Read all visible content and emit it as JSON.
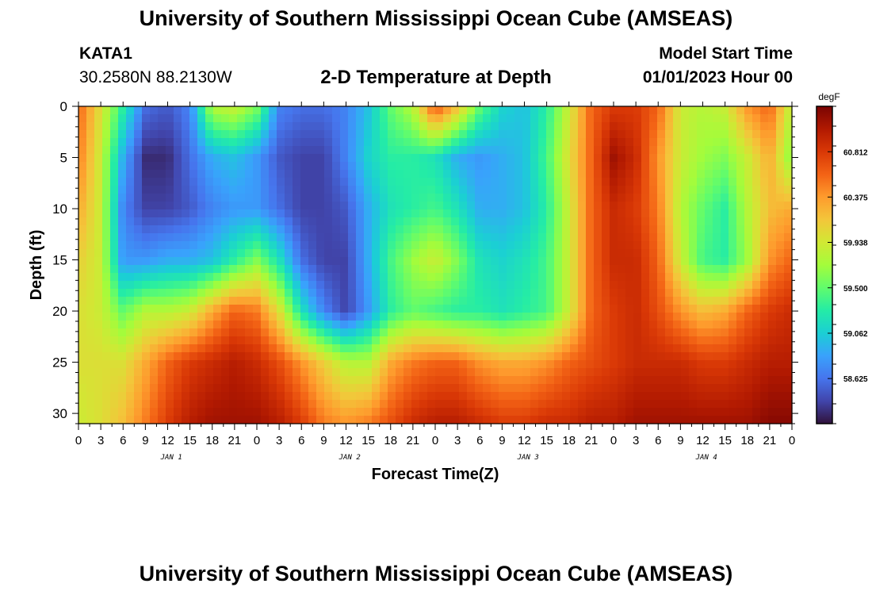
{
  "header": {
    "title": "University of Southern Mississippi Ocean Cube (AMSEAS)",
    "station": "KATA1",
    "coordinates": "30.2580N  88.2130W",
    "subtitle": "2-D Temperature at Depth",
    "model_start_label": "Model Start Time",
    "model_start_value": "01/01/2023 Hour 00"
  },
  "footer": {
    "title": "University of Southern Mississippi Ocean Cube (AMSEAS)"
  },
  "chart_data": {
    "type": "heatmap",
    "title": "2-D Temperature at Depth",
    "xlabel": "Forecast Time(Z)",
    "ylabel": "Depth (ft)",
    "x_range_hours": [
      0,
      96
    ],
    "y_range_ft": [
      0,
      31
    ],
    "y_inverted": true,
    "x_ticks": [
      "0",
      "3",
      "6",
      "9",
      "12",
      "15",
      "18",
      "21",
      "0",
      "3",
      "6",
      "9",
      "12",
      "15",
      "18",
      "21",
      "0",
      "3",
      "6",
      "9",
      "12",
      "15",
      "18",
      "21",
      "0",
      "3",
      "6",
      "9",
      "12",
      "15",
      "18",
      "21",
      "0"
    ],
    "y_ticks": [
      "0",
      "5",
      "10",
      "15",
      "20",
      "25",
      "30"
    ],
    "day_labels": [
      "JAN 1",
      "JAN 2",
      "JAN 3",
      "JAN 4"
    ],
    "colorbar": {
      "unit": "degF",
      "ticks": [
        "60.812",
        "60.375",
        "59.938",
        "59.500",
        "59.062",
        "58.625"
      ],
      "tick_values": [
        60.812,
        60.375,
        59.938,
        59.5,
        59.062,
        58.625
      ],
      "vmin": 58.19,
      "vmax": 61.25
    },
    "colors": [
      "#30123b",
      "#4145ab",
      "#4675ed",
      "#39a2fc",
      "#1bcfd4",
      "#24eca6",
      "#61fc6c",
      "#a4fc3b",
      "#d1e834",
      "#f3c63a",
      "#fe9b2d",
      "#f36315",
      "#d93806",
      "#b11901",
      "#7a0403"
    ],
    "z_depths_ft": [
      0,
      5,
      10,
      15,
      20,
      25,
      31
    ],
    "z_times_hours": [
      0,
      3,
      6,
      9,
      12,
      15,
      18,
      21,
      24,
      27,
      30,
      33,
      36,
      39,
      42,
      45,
      48,
      51,
      54,
      57,
      60,
      63,
      66,
      69,
      72,
      75,
      78,
      81,
      84,
      87,
      90,
      93,
      96
    ],
    "z_degF": [
      [
        60.6,
        60.0,
        59.3,
        58.6,
        58.5,
        58.7,
        59.8,
        59.9,
        59.6,
        58.7,
        58.6,
        58.6,
        58.7,
        59.0,
        59.5,
        59.8,
        60.7,
        60.2,
        59.5,
        59.1,
        59.0,
        59.3,
        59.9,
        60.6,
        60.8,
        60.8,
        60.6,
        59.9,
        59.8,
        59.9,
        60.4,
        60.6,
        59.8
      ],
      [
        60.5,
        59.9,
        58.9,
        58.3,
        58.3,
        58.6,
        58.9,
        59.0,
        58.8,
        58.5,
        58.4,
        58.4,
        58.7,
        59.1,
        59.3,
        59.3,
        59.2,
        58.9,
        58.8,
        58.9,
        59.0,
        59.4,
        60.0,
        60.6,
        61.1,
        60.9,
        60.4,
        59.9,
        59.7,
        59.6,
        59.9,
        60.3,
        59.6
      ],
      [
        60.3,
        59.9,
        58.7,
        58.4,
        58.4,
        58.5,
        58.7,
        58.8,
        58.8,
        58.6,
        58.4,
        58.4,
        58.5,
        58.9,
        59.2,
        59.3,
        59.4,
        59.2,
        58.9,
        58.9,
        59.0,
        59.3,
        59.9,
        60.6,
        60.9,
        60.8,
        60.5,
        59.8,
        59.5,
        59.3,
        59.8,
        60.2,
        60.3
      ],
      [
        60.1,
        59.9,
        58.8,
        58.8,
        58.9,
        58.9,
        59.0,
        59.3,
        59.6,
        59.2,
        58.6,
        58.4,
        58.4,
        58.9,
        59.4,
        59.7,
        59.9,
        59.6,
        59.2,
        59.1,
        59.2,
        59.4,
        59.9,
        60.6,
        60.9,
        60.9,
        60.6,
        59.9,
        59.4,
        59.3,
        59.7,
        60.4,
        60.6
      ],
      [
        60.0,
        59.9,
        59.5,
        59.8,
        59.8,
        59.9,
        60.3,
        60.6,
        60.5,
        60.0,
        59.2,
        58.7,
        58.4,
        58.8,
        59.3,
        59.5,
        59.4,
        59.3,
        59.3,
        59.2,
        59.3,
        59.4,
        59.9,
        60.6,
        60.8,
        60.9,
        60.7,
        60.4,
        60.2,
        60.3,
        60.6,
        60.8,
        60.9
      ],
      [
        60.0,
        60.0,
        60.0,
        60.3,
        60.6,
        60.8,
        60.9,
        61.0,
        60.9,
        60.7,
        60.4,
        60.1,
        59.8,
        59.8,
        60.3,
        60.5,
        60.6,
        60.6,
        60.4,
        60.3,
        60.3,
        60.4,
        60.6,
        60.7,
        60.8,
        60.9,
        60.9,
        60.9,
        60.8,
        60.8,
        60.9,
        61.0,
        61.0
      ],
      [
        59.9,
        60.0,
        60.2,
        60.5,
        60.8,
        61.0,
        61.1,
        61.1,
        61.1,
        61.0,
        60.8,
        60.5,
        60.4,
        60.5,
        60.7,
        60.9,
        61.0,
        61.0,
        60.9,
        60.8,
        60.8,
        60.9,
        60.9,
        61.0,
        61.0,
        61.1,
        61.1,
        61.1,
        61.1,
        61.1,
        61.1,
        61.2,
        61.2
      ]
    ]
  }
}
